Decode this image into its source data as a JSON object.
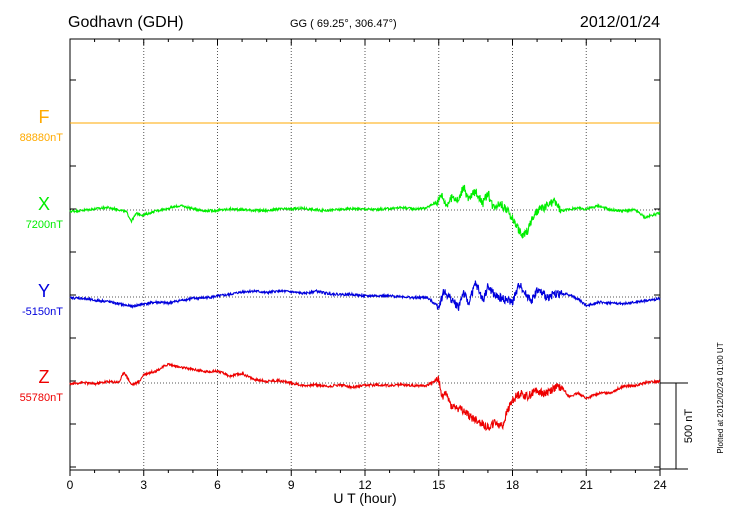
{
  "header": {
    "station": "Godhavn (GDH)",
    "coords": "GG ( 69.25°, 306.47°)",
    "date": "2012/01/24"
  },
  "footer_note": "Plotted at 2012/02/24 01:00 UT",
  "chart_data": {
    "type": "line",
    "title": "Godhavn (GDH)",
    "xlabel": "U T (hour)",
    "xlim": [
      0,
      24
    ],
    "xticks": [
      "0",
      "3",
      "6",
      "9",
      "12",
      "15",
      "18",
      "21",
      "24"
    ],
    "grid": true,
    "scale_bar": {
      "label": "500 nT",
      "value_nT": 500
    },
    "units_per_step_nT": 250,
    "series": [
      {
        "name": "F",
        "baseline_label": "88880nT",
        "color": "#ffaa00",
        "points": [
          [
            0,
            0
          ],
          [
            24,
            0
          ]
        ]
      },
      {
        "name": "X",
        "baseline_label": "7200nT",
        "color": "#00ee00",
        "points": [
          [
            0,
            -8
          ],
          [
            0.5,
            -2
          ],
          [
            1,
            6
          ],
          [
            1.5,
            15
          ],
          [
            2,
            2
          ],
          [
            2.3,
            -12
          ],
          [
            2.5,
            -65
          ],
          [
            2.7,
            -20
          ],
          [
            3,
            -30
          ],
          [
            3.5,
            -5
          ],
          [
            4,
            10
          ],
          [
            4.5,
            25
          ],
          [
            5,
            8
          ],
          [
            5.5,
            -5
          ],
          [
            6,
            -2
          ],
          [
            6.5,
            5
          ],
          [
            7,
            3
          ],
          [
            7.5,
            -2
          ],
          [
            8,
            -4
          ],
          [
            8.5,
            5
          ],
          [
            9,
            6
          ],
          [
            9.5,
            10
          ],
          [
            10,
            0
          ],
          [
            10.5,
            -2
          ],
          [
            11,
            3
          ],
          [
            11.5,
            8
          ],
          [
            12,
            5
          ],
          [
            12.5,
            2
          ],
          [
            13,
            8
          ],
          [
            13.5,
            15
          ],
          [
            14,
            6
          ],
          [
            14.5,
            12
          ],
          [
            15,
            55
          ],
          [
            15.1,
            95
          ],
          [
            15.3,
            30
          ],
          [
            15.6,
            80
          ],
          [
            15.8,
            50
          ],
          [
            16,
            140
          ],
          [
            16.2,
            60
          ],
          [
            16.5,
            110
          ],
          [
            16.8,
            40
          ],
          [
            17,
            100
          ],
          [
            17.2,
            20
          ],
          [
            17.5,
            40
          ],
          [
            17.8,
            -5
          ],
          [
            18,
            -50
          ],
          [
            18.2,
            -100
          ],
          [
            18.4,
            -155
          ],
          [
            18.6,
            -120
          ],
          [
            18.8,
            -55
          ],
          [
            19,
            -10
          ],
          [
            19.3,
            15
          ],
          [
            19.7,
            50
          ],
          [
            20,
            -5
          ],
          [
            20.3,
            5
          ],
          [
            20.7,
            10
          ],
          [
            21,
            5
          ],
          [
            21.5,
            25
          ],
          [
            22,
            0
          ],
          [
            22.5,
            -5
          ],
          [
            23,
            0
          ],
          [
            23.4,
            -45
          ],
          [
            23.7,
            -28
          ],
          [
            24,
            -18
          ]
        ]
      },
      {
        "name": "Y",
        "baseline_label": "-5150nT",
        "color": "#0000dd",
        "points": [
          [
            0,
            -5
          ],
          [
            0.5,
            -8
          ],
          [
            1,
            -20
          ],
          [
            1.5,
            -25
          ],
          [
            2,
            -40
          ],
          [
            2.5,
            -55
          ],
          [
            3,
            -40
          ],
          [
            3.5,
            -30
          ],
          [
            4,
            -35
          ],
          [
            4.5,
            -20
          ],
          [
            5,
            -8
          ],
          [
            5.5,
            -5
          ],
          [
            6,
            5
          ],
          [
            6.5,
            15
          ],
          [
            7,
            30
          ],
          [
            7.5,
            35
          ],
          [
            8,
            25
          ],
          [
            8.5,
            35
          ],
          [
            9,
            30
          ],
          [
            9.5,
            20
          ],
          [
            10,
            35
          ],
          [
            10.5,
            20
          ],
          [
            11,
            15
          ],
          [
            11.5,
            15
          ],
          [
            12,
            5
          ],
          [
            12.5,
            8
          ],
          [
            13,
            5
          ],
          [
            13.5,
            3
          ],
          [
            14,
            -5
          ],
          [
            14.5,
            -2
          ],
          [
            15,
            -55
          ],
          [
            15.2,
            30
          ],
          [
            15.5,
            -10
          ],
          [
            15.8,
            -60
          ],
          [
            16,
            30
          ],
          [
            16.2,
            -40
          ],
          [
            16.5,
            80
          ],
          [
            16.8,
            -20
          ],
          [
            17,
            60
          ],
          [
            17.3,
            5
          ],
          [
            17.6,
            -10
          ],
          [
            18,
            -30
          ],
          [
            18.3,
            80
          ],
          [
            18.5,
            20
          ],
          [
            18.8,
            -20
          ],
          [
            19,
            40
          ],
          [
            19.4,
            0
          ],
          [
            19.8,
            20
          ],
          [
            20.3,
            15
          ],
          [
            20.7,
            -15
          ],
          [
            21,
            -50
          ],
          [
            21.5,
            -30
          ],
          [
            22,
            -35
          ],
          [
            22.5,
            -40
          ],
          [
            23,
            -30
          ],
          [
            23.5,
            -20
          ],
          [
            24,
            -10
          ]
        ]
      },
      {
        "name": "Z",
        "baseline_label": "55780nT",
        "color": "#ee0000",
        "points": [
          [
            0,
            -5
          ],
          [
            0.5,
            3
          ],
          [
            1,
            -5
          ],
          [
            1.5,
            8
          ],
          [
            2,
            5
          ],
          [
            2.2,
            65
          ],
          [
            2.5,
            -10
          ],
          [
            2.8,
            5
          ],
          [
            3,
            50
          ],
          [
            3.5,
            70
          ],
          [
            4,
            110
          ],
          [
            4.5,
            90
          ],
          [
            5,
            80
          ],
          [
            5.5,
            65
          ],
          [
            6,
            70
          ],
          [
            6.5,
            40
          ],
          [
            7,
            55
          ],
          [
            7.5,
            20
          ],
          [
            8,
            10
          ],
          [
            8.5,
            15
          ],
          [
            9,
            0
          ],
          [
            9.5,
            -15
          ],
          [
            10,
            -10
          ],
          [
            10.5,
            -20
          ],
          [
            11,
            -10
          ],
          [
            11.5,
            -25
          ],
          [
            12,
            -15
          ],
          [
            12.5,
            -10
          ],
          [
            13,
            -15
          ],
          [
            13.5,
            -10
          ],
          [
            14,
            -15
          ],
          [
            14.5,
            -15
          ],
          [
            15,
            25
          ],
          [
            15.1,
            -80
          ],
          [
            15.3,
            -60
          ],
          [
            15.5,
            -130
          ],
          [
            15.8,
            -150
          ],
          [
            16,
            -160
          ],
          [
            16.3,
            -200
          ],
          [
            16.6,
            -220
          ],
          [
            17,
            -260
          ],
          [
            17.3,
            -230
          ],
          [
            17.6,
            -250
          ],
          [
            17.8,
            -160
          ],
          [
            18,
            -100
          ],
          [
            18.3,
            -60
          ],
          [
            18.6,
            -80
          ],
          [
            19,
            -40
          ],
          [
            19.3,
            -60
          ],
          [
            19.7,
            -30
          ],
          [
            20,
            -20
          ],
          [
            20.3,
            -80
          ],
          [
            20.7,
            -60
          ],
          [
            21,
            -90
          ],
          [
            21.5,
            -60
          ],
          [
            22,
            -55
          ],
          [
            22.5,
            -20
          ],
          [
            23,
            -15
          ],
          [
            23.5,
            5
          ],
          [
            24,
            8
          ]
        ]
      }
    ]
  }
}
